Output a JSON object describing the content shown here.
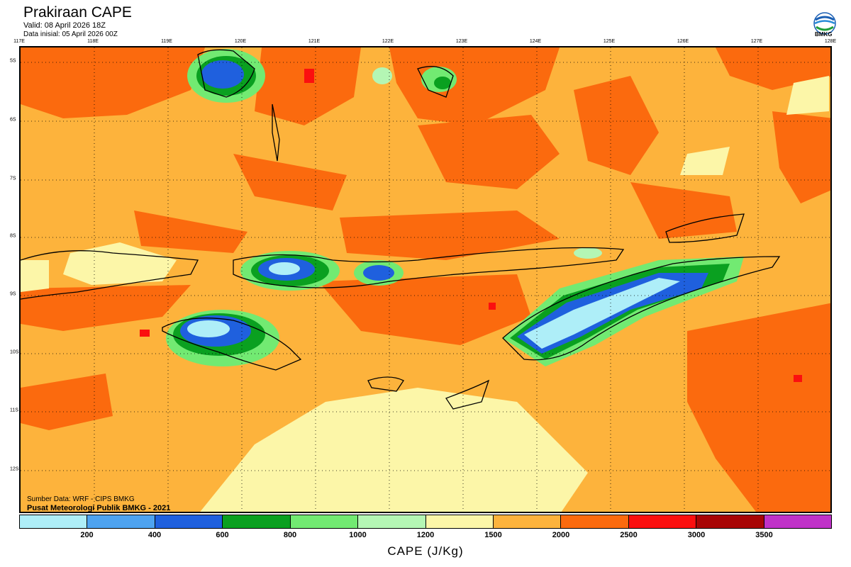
{
  "header": {
    "title": "Prakiraan CAPE",
    "valid": "Valid: 08 April 2026 18Z",
    "initial": "Data inisial: 05 April 2026 00Z"
  },
  "logo": {
    "text": "BMKG"
  },
  "map": {
    "lon_labels": [
      "117E",
      "118E",
      "119E",
      "120E",
      "121E",
      "122E",
      "123E",
      "124E",
      "125E",
      "126E",
      "127E",
      "128E"
    ],
    "lat_labels": [
      "5S",
      "6S",
      "7S",
      "8S",
      "9S",
      "10S",
      "11S",
      "12S"
    ]
  },
  "footer": {
    "source": "Sumber Data: WRF - CIPS BMKG",
    "credit": "Pusat Meteorologi Publik BMKG - 2021"
  },
  "colorbar": {
    "title": "CAPE (J/Kg)",
    "ticks": [
      "200",
      "400",
      "600",
      "800",
      "1000",
      "1200",
      "1500",
      "2000",
      "2500",
      "3000",
      "3500"
    ],
    "colors": [
      "#aeeef8",
      "#4ea3f0",
      "#1f60de",
      "#0aa020",
      "#72ea72",
      "#b4f6b4",
      "#fcf6a8",
      "#fdb33c",
      "#fb6a0e",
      "#fb0f0f",
      "#a80505",
      "#c032c8"
    ]
  }
}
